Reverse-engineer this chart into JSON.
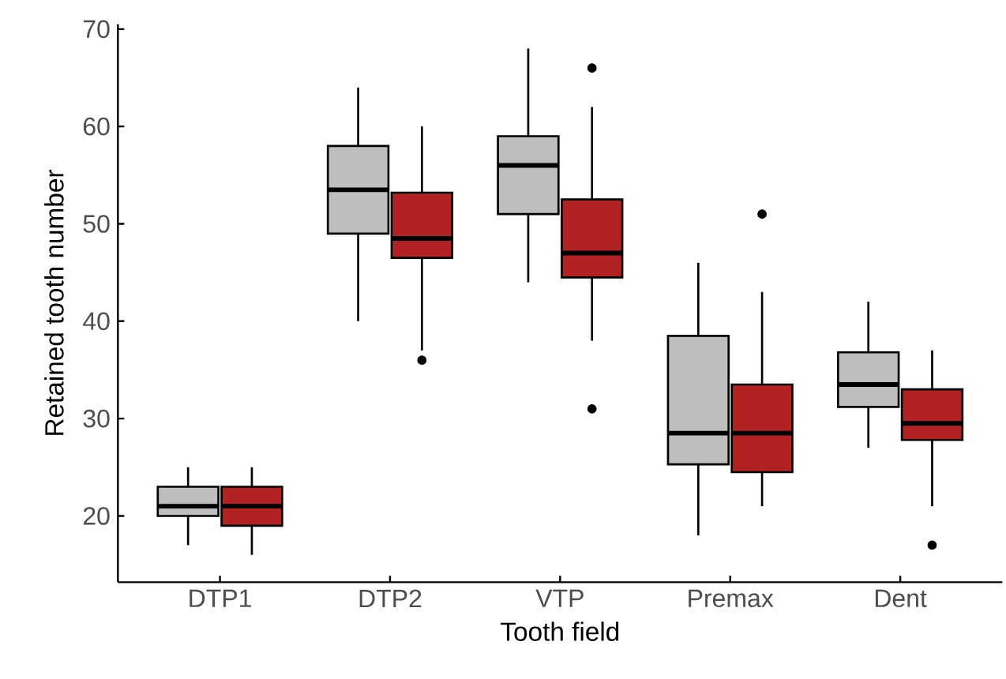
{
  "chart_data": {
    "type": "box",
    "xlabel": "Tooth field",
    "ylabel": "Retained tooth number",
    "categories": [
      "DTP1",
      "DTP2",
      "VTP",
      "Premax",
      "Dent"
    ],
    "ylim": [
      13.2,
      70.5
    ],
    "yticks": [
      20,
      30,
      40,
      50,
      60,
      70
    ],
    "series": [
      {
        "color": "#bebebe",
        "boxes": [
          {
            "low": 17,
            "q1": 20,
            "median": 21,
            "q3": 23,
            "high": 25
          },
          {
            "low": 40,
            "q1": 49,
            "median": 53.5,
            "q3": 58,
            "high": 64
          },
          {
            "low": 44,
            "q1": 51,
            "median": 56,
            "q3": 59,
            "high": 68
          },
          {
            "low": 18,
            "q1": 25.3,
            "median": 28.5,
            "q3": 38.5,
            "high": 46
          },
          {
            "low": 27,
            "q1": 31.2,
            "median": 33.5,
            "q3": 36.8,
            "high": 42
          }
        ]
      },
      {
        "color": "#b22222",
        "boxes": [
          {
            "low": 16,
            "q1": 19,
            "median": 21,
            "q3": 23,
            "high": 25
          },
          {
            "low": 37,
            "q1": 46.5,
            "median": 48.5,
            "q3": 53.2,
            "high": 60,
            "outliers": [
              36
            ]
          },
          {
            "low": 38,
            "q1": 44.5,
            "median": 47,
            "q3": 52.5,
            "high": 62,
            "outliers": [
              66,
              31
            ]
          },
          {
            "low": 21,
            "q1": 24.5,
            "median": 28.5,
            "q3": 33.5,
            "high": 43,
            "outliers": [
              51
            ]
          },
          {
            "low": 21,
            "q1": 27.8,
            "median": 29.5,
            "q3": 33,
            "high": 37,
            "outliers": [
              17
            ]
          }
        ]
      }
    ]
  }
}
